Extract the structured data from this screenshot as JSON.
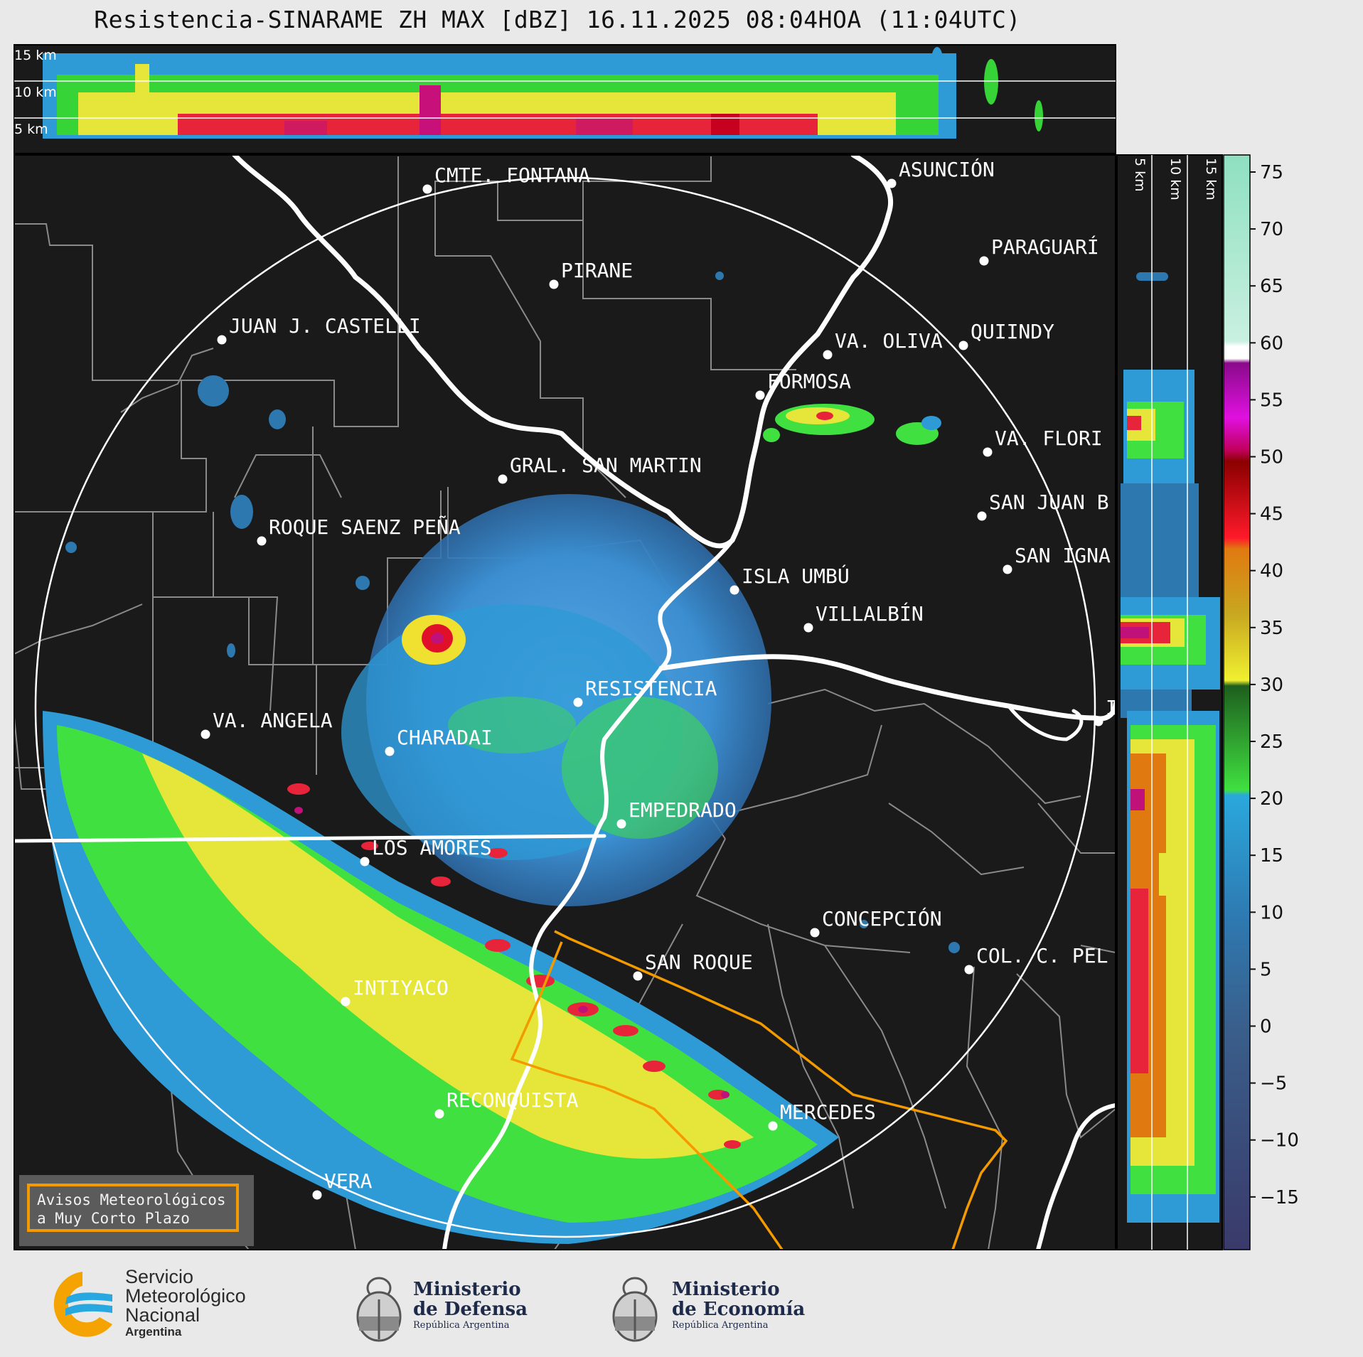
{
  "title": "Resistencia-SINARAME ZH MAX [dBZ] 16.11.2025 08:04HOA (11:04UTC)",
  "altitude_labels": [
    "15 km",
    "10 km",
    "5 km"
  ],
  "colorbar": {
    "ticks": [
      "75",
      "70",
      "65",
      "60",
      "55",
      "50",
      "45",
      "40",
      "35",
      "30",
      "25",
      "20",
      "15",
      "10",
      "5",
      "0",
      "−5",
      "−10",
      "−15"
    ]
  },
  "cities": [
    {
      "name": "CMTE. FONTANA"
    },
    {
      "name": "ASUNCIÓN"
    },
    {
      "name": "PARAGUARÍ"
    },
    {
      "name": "PIRANE"
    },
    {
      "name": "JUAN J. CASTELLI"
    },
    {
      "name": "VA. OLIVA"
    },
    {
      "name": "QUIINDY"
    },
    {
      "name": "FORMOSA"
    },
    {
      "name": "VA. FLORI"
    },
    {
      "name": "GRAL. SAN MARTIN"
    },
    {
      "name": "SAN JUAN B"
    },
    {
      "name": "ROQUE SAENZ PEÑA"
    },
    {
      "name": "SAN IGNA"
    },
    {
      "name": "ISLA UMBÚ"
    },
    {
      "name": "VILLALBÍN"
    },
    {
      "name": "RESISTENCIA"
    },
    {
      "name": "VA. ANGELA"
    },
    {
      "name": "CHARADAI"
    },
    {
      "name": "IT"
    },
    {
      "name": "EMPEDRADO"
    },
    {
      "name": "LOS AMORES"
    },
    {
      "name": "CONCEPCIÓN"
    },
    {
      "name": "SAN ROQUE"
    },
    {
      "name": "COL. C. PEL"
    },
    {
      "name": "INTIYACO"
    },
    {
      "name": "RECONQUISTA"
    },
    {
      "name": "MERCEDES"
    },
    {
      "name": "VERA"
    }
  ],
  "warning_box": {
    "line1": "Avisos Meteorológicos",
    "line2": "a Muy Corto Plazo"
  },
  "logos": {
    "smn": {
      "line1": "Servicio",
      "line2": "Meteorológico",
      "line3": "Nacional",
      "line4": "Argentina"
    },
    "defensa": {
      "line1": "Ministerio",
      "line2": "de Defensa",
      "line3": "República Argentina"
    },
    "economia": {
      "line1": "Ministerio",
      "line2": "de Economía",
      "line3": "República Argentina"
    }
  },
  "colors": {
    "background": "#1a1a1a",
    "border": "#ffffff",
    "province": "#8a8a8a",
    "warning": "#f39a00"
  }
}
